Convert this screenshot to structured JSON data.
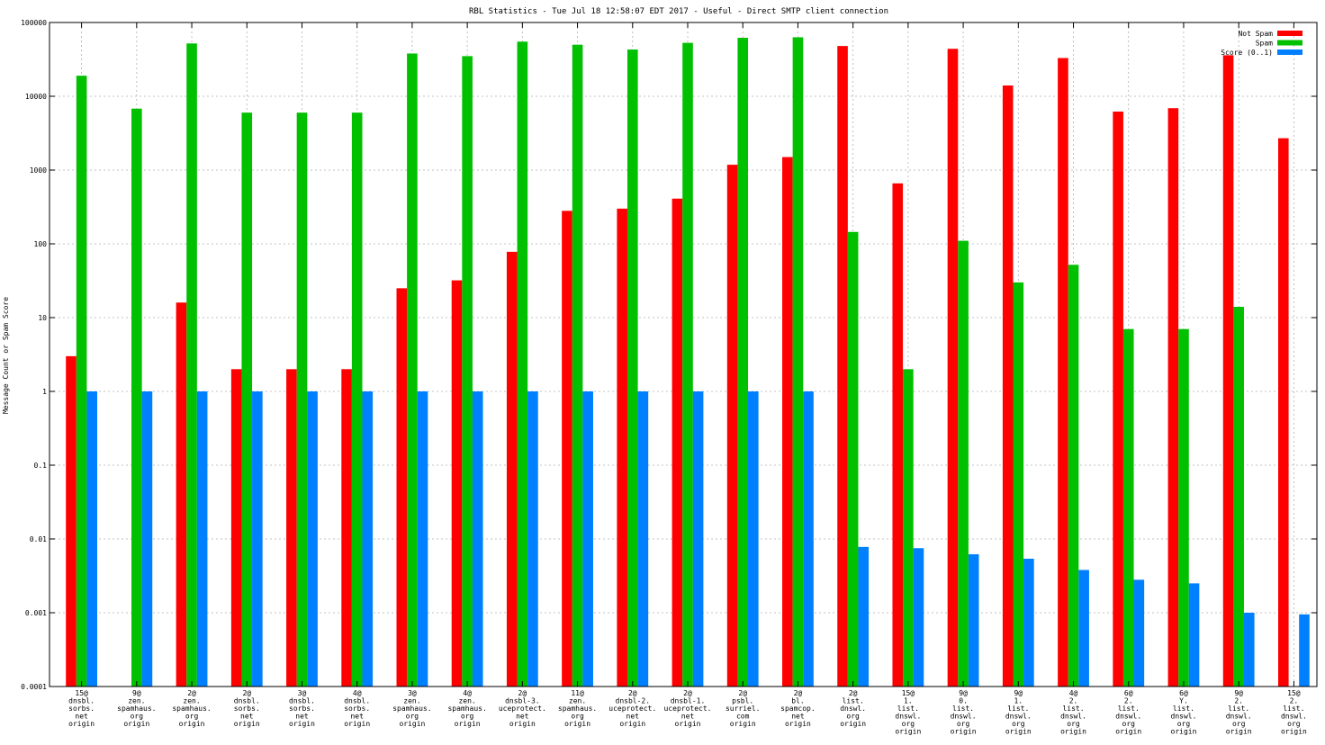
{
  "chart_data": {
    "type": "bar",
    "title": "RBL Statistics - Tue Jul 18 12:58:07 EDT 2017 - Useful - Direct SMTP client connection",
    "xlabel": "",
    "ylabel": "Message Count or Spam Score",
    "yscale": "log",
    "ylim": [
      0.0001,
      100000
    ],
    "ytick_labels": [
      "100000",
      "10000",
      "1000",
      "100",
      "10",
      "1",
      "0.1",
      "0.01",
      "0.001",
      "0.0001"
    ],
    "grid": true,
    "legend_position": "top-right",
    "categories": [
      [
        "15@",
        "dnsbl.",
        "sorbs.",
        "net",
        "origin"
      ],
      [
        "9@",
        "zen.",
        "spamhaus.",
        "org",
        "origin"
      ],
      [
        "2@",
        "zen.",
        "spamhaus.",
        "org",
        "origin"
      ],
      [
        "2@",
        "dnsbl.",
        "sorbs.",
        "net",
        "origin"
      ],
      [
        "3@",
        "dnsbl.",
        "sorbs.",
        "net",
        "origin"
      ],
      [
        "4@",
        "dnsbl.",
        "sorbs.",
        "net",
        "origin"
      ],
      [
        "3@",
        "zen.",
        "spamhaus.",
        "org",
        "origin"
      ],
      [
        "4@",
        "zen.",
        "spamhaus.",
        "org",
        "origin"
      ],
      [
        "2@",
        "dnsbl-3.",
        "uceprotect.",
        "net",
        "origin"
      ],
      [
        "11@",
        "zen.",
        "spamhaus.",
        "org",
        "origin"
      ],
      [
        "2@",
        "dnsbl-2.",
        "uceprotect.",
        "net",
        "origin"
      ],
      [
        "2@",
        "dnsbl-1.",
        "uceprotect.",
        "net",
        "origin"
      ],
      [
        "2@",
        "psbl.",
        "surriel.",
        "com",
        "origin"
      ],
      [
        "2@",
        "bl.",
        "spamcop.",
        "net",
        "origin"
      ],
      [
        "2@",
        "list.",
        "dnswl.",
        "org",
        "origin"
      ],
      [
        "15@",
        "1.",
        "list.",
        "dnswl.",
        "org",
        "origin"
      ],
      [
        "9@",
        "0.",
        "list.",
        "dnswl.",
        "org",
        "origin"
      ],
      [
        "9@",
        "1.",
        "list.",
        "dnswl.",
        "org",
        "origin"
      ],
      [
        "4@",
        "2.",
        "list.",
        "dnswl.",
        "org",
        "origin"
      ],
      [
        "6@",
        "2.",
        "list.",
        "dnswl.",
        "org",
        "origin"
      ],
      [
        "6@",
        "Y.",
        "list.",
        "dnswl.",
        "org",
        "origin"
      ],
      [
        "9@",
        "2.",
        "list.",
        "dnswl.",
        "org",
        "origin"
      ],
      [
        "15@",
        "2.",
        "list.",
        "dnswl.",
        "org",
        "origin"
      ]
    ],
    "series": [
      {
        "name": "Not Spam",
        "color": "#ff0000",
        "values": [
          3,
          null,
          16,
          2,
          2,
          2,
          25,
          32,
          78,
          280,
          300,
          410,
          1180,
          1500,
          48000,
          660,
          44000,
          14000,
          33000,
          6200,
          6900,
          36000,
          2700
        ]
      },
      {
        "name": "Spam",
        "color": "#00c000",
        "values": [
          19000,
          6800,
          52000,
          6000,
          6000,
          6000,
          38000,
          35000,
          55000,
          50000,
          43000,
          53000,
          62000,
          63000,
          145,
          2,
          110,
          30,
          52,
          7,
          7,
          14,
          null
        ]
      },
      {
        "name": "Score (0..1)",
        "color": "#0080ff",
        "values": [
          1,
          1,
          1,
          1,
          1,
          1,
          1,
          1,
          1,
          1,
          1,
          1,
          1,
          1,
          0.0078,
          0.0075,
          0.0062,
          0.0054,
          0.0038,
          0.0028,
          0.0025,
          0.001,
          0.00095
        ]
      }
    ]
  }
}
